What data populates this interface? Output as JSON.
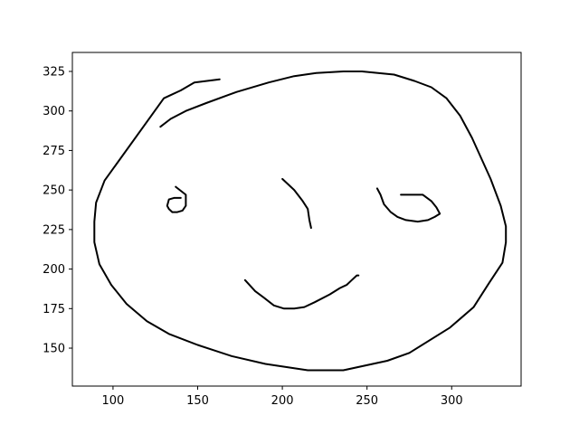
{
  "chart_data": {
    "type": "line",
    "title": "",
    "xlabel": "",
    "ylabel": "",
    "xlim": [
      76,
      341
    ],
    "ylim": [
      126,
      337
    ],
    "xticks": [
      100,
      150,
      200,
      250,
      300
    ],
    "yticks": [
      150,
      175,
      200,
      225,
      250,
      275,
      300,
      325
    ],
    "grid": false,
    "line_color": "#000000",
    "series": [
      {
        "name": "face-outline",
        "points": [
          [
            163,
            320
          ],
          [
            148,
            318
          ],
          [
            140,
            313
          ],
          [
            134,
            310
          ],
          [
            130,
            308
          ],
          [
            95,
            256
          ],
          [
            90,
            242
          ],
          [
            89,
            230
          ],
          [
            89,
            217
          ],
          [
            92,
            203
          ],
          [
            99,
            190
          ],
          [
            108,
            178
          ],
          [
            120,
            167
          ],
          [
            133,
            159
          ],
          [
            150,
            152
          ],
          [
            170,
            145
          ],
          [
            190,
            140
          ],
          [
            215,
            136
          ],
          [
            236,
            136
          ],
          [
            262,
            142
          ],
          [
            275,
            147
          ],
          [
            299,
            163
          ],
          [
            313,
            176
          ],
          [
            322,
            191
          ],
          [
            330,
            204
          ],
          [
            332,
            217
          ],
          [
            332,
            227
          ],
          [
            329,
            240
          ],
          [
            323,
            257
          ],
          [
            312,
            283
          ],
          [
            305,
            297
          ],
          [
            297,
            308
          ],
          [
            288,
            315
          ],
          [
            278,
            319
          ],
          [
            266,
            323
          ],
          [
            247,
            325
          ],
          [
            236,
            325
          ],
          [
            220,
            324
          ],
          [
            207,
            322
          ],
          [
            192,
            318
          ],
          [
            173,
            312
          ],
          [
            155,
            305
          ],
          [
            143,
            300
          ],
          [
            134,
            295
          ],
          [
            128,
            290
          ]
        ]
      },
      {
        "name": "left-eye",
        "points": [
          [
            137,
            252
          ],
          [
            143,
            247
          ],
          [
            143,
            240
          ],
          [
            141,
            237
          ],
          [
            138,
            236
          ],
          [
            135,
            236
          ],
          [
            133,
            238
          ],
          [
            132,
            240
          ],
          [
            133,
            244
          ],
          [
            136,
            245
          ],
          [
            140,
            245
          ]
        ]
      },
      {
        "name": "nose",
        "points": [
          [
            200,
            257
          ],
          [
            207,
            250
          ],
          [
            212,
            243
          ],
          [
            215,
            238
          ],
          [
            216,
            231
          ],
          [
            217,
            226
          ]
        ]
      },
      {
        "name": "right-eye-brow",
        "points": [
          [
            256,
            251
          ],
          [
            258,
            247
          ],
          [
            260,
            241
          ],
          [
            264,
            236
          ],
          [
            268,
            233
          ],
          [
            273,
            231
          ],
          [
            280,
            230
          ],
          [
            286,
            231
          ],
          [
            290,
            233
          ],
          [
            293,
            235
          ],
          [
            291,
            239
          ],
          [
            288,
            243
          ],
          [
            283,
            247
          ],
          [
            274,
            247
          ],
          [
            270,
            247
          ]
        ]
      },
      {
        "name": "mouth",
        "points": [
          [
            178,
            193
          ],
          [
            184,
            186
          ],
          [
            189,
            182
          ],
          [
            195,
            177
          ],
          [
            201,
            175
          ],
          [
            207,
            175
          ],
          [
            213,
            176
          ],
          [
            219,
            179
          ],
          [
            228,
            184
          ],
          [
            234,
            188
          ],
          [
            238,
            190
          ],
          [
            241,
            193
          ],
          [
            244,
            196
          ],
          [
            245,
            196
          ]
        ]
      }
    ]
  }
}
